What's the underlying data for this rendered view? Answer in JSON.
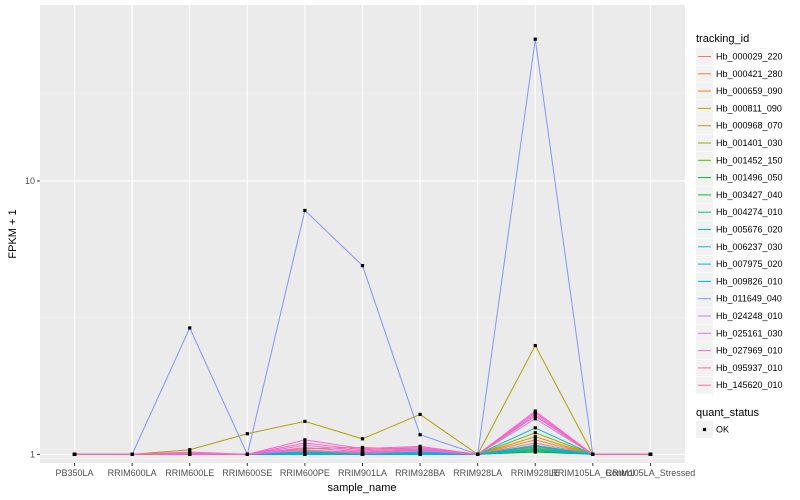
{
  "chart_data": {
    "type": "line",
    "xlabel": "sample_name",
    "ylabel": "FPKM + 1",
    "y_scale": "log",
    "ylim": [
      0.93,
      44
    ],
    "y_ticks": [
      {
        "value": 1,
        "label": "1"
      },
      {
        "value": 10,
        "label": "10"
      }
    ],
    "categories": [
      "PB350LA",
      "RRIM600LA",
      "RRIM600LE",
      "RRIM600SE",
      "RRIM600PE",
      "RRIM901LA",
      "RRIM928BA",
      "RRIM928LA",
      "RRIM928LE",
      "RRIM105LA_Control",
      "RRIM105LA_Stressed"
    ],
    "grid": true,
    "legend_placement": "right",
    "legend_title": "tracking_id",
    "shape_legend_title": "quant_status",
    "shape_legend_items": [
      {
        "label": "OK",
        "marker": "square",
        "color": "#000000"
      }
    ],
    "series": [
      {
        "name": "Hb_000029_220",
        "color": "#F8766D",
        "values": [
          1,
          1,
          1.0,
          1.0,
          1.03,
          1.02,
          1.0,
          1,
          1.1,
          1,
          1
        ]
      },
      {
        "name": "Hb_000421_280",
        "color": "#EC8239",
        "values": [
          1,
          1,
          1.0,
          1.0,
          1.05,
          1.06,
          1.04,
          1,
          1.13,
          1,
          1
        ]
      },
      {
        "name": "Hb_000659_090",
        "color": "#DB8E00",
        "values": [
          1,
          1,
          1.01,
          1.0,
          1.02,
          1.02,
          1.03,
          1,
          1.06,
          1,
          1
        ]
      },
      {
        "name": "Hb_000811_090",
        "color": "#C79800",
        "values": [
          1,
          1,
          1.0,
          1.0,
          1.01,
          1.01,
          1.02,
          1,
          1.16,
          1,
          1
        ]
      },
      {
        "name": "Hb_000968_070",
        "color": "#AEA200",
        "values": [
          1,
          1,
          1.04,
          1.19,
          1.32,
          1.14,
          1.4,
          1,
          2.5,
          1,
          1
        ]
      },
      {
        "name": "Hb_001401_030",
        "color": "#8FAA00",
        "values": [
          1,
          1,
          1.0,
          1.0,
          1.02,
          1.01,
          1.05,
          1,
          1.2,
          1,
          1
        ]
      },
      {
        "name": "Hb_001452_150",
        "color": "#64B200",
        "values": [
          1,
          1,
          1.0,
          1.0,
          1.01,
          1.0,
          1.01,
          1,
          1.04,
          1,
          1
        ]
      },
      {
        "name": "Hb_001496_050",
        "color": "#00B81B",
        "values": [
          1,
          1,
          1.0,
          1.0,
          1.0,
          1.0,
          1.0,
          1,
          1.02,
          1,
          1
        ]
      },
      {
        "name": "Hb_003427_040",
        "color": "#00BD5C",
        "values": [
          1,
          1,
          1.0,
          1.0,
          1.01,
          1.0,
          1.01,
          1,
          1.03,
          1,
          1
        ]
      },
      {
        "name": "Hb_004274_010",
        "color": "#00C08E",
        "values": [
          1,
          1,
          1.0,
          1.0,
          1.0,
          1.0,
          1.0,
          1,
          1.05,
          1,
          1
        ]
      },
      {
        "name": "Hb_005676_020",
        "color": "#00C1B7",
        "values": [
          1,
          1,
          1.0,
          1.0,
          1.0,
          1.0,
          1.0,
          1,
          1.08,
          1,
          1
        ]
      },
      {
        "name": "Hb_006237_030",
        "color": "#00BDD4",
        "values": [
          1,
          1,
          1.0,
          1.0,
          1.02,
          1.0,
          1.02,
          1,
          1.25,
          1,
          1
        ]
      },
      {
        "name": "Hb_007975_020",
        "color": "#00B5EE",
        "values": [
          1,
          1,
          1.0,
          1.0,
          1.0,
          1.0,
          1.0,
          1,
          1.04,
          1,
          1
        ]
      },
      {
        "name": "Hb_009826_010",
        "color": "#00A7FF",
        "values": [
          1,
          1,
          1.0,
          1.0,
          1.01,
          1.0,
          1.01,
          1,
          1.07,
          1,
          1
        ]
      },
      {
        "name": "Hb_011649_040",
        "color": "#7F96FF",
        "values": [
          1,
          1,
          2.9,
          1.0,
          7.8,
          4.9,
          1.18,
          1,
          33,
          1,
          1
        ]
      },
      {
        "name": "Hb_024248_010",
        "color": "#BC81FF",
        "values": [
          1,
          1,
          1.0,
          1.0,
          1.04,
          1.01,
          1.03,
          1,
          1.35,
          1,
          1
        ]
      },
      {
        "name": "Hb_025161_030",
        "color": "#E26EF7",
        "values": [
          1,
          1,
          1.01,
          1.0,
          1.08,
          1.03,
          1.05,
          1,
          1.4,
          1,
          1
        ]
      },
      {
        "name": "Hb_027969_010",
        "color": "#F863DF",
        "values": [
          1,
          1,
          1.02,
          1.0,
          1.13,
          1.05,
          1.07,
          1,
          1.44,
          1,
          1
        ]
      },
      {
        "name": "Hb_095937_010",
        "color": "#FF62BF",
        "values": [
          1,
          1,
          1.0,
          1.0,
          1.06,
          1.02,
          1.04,
          1,
          1.42,
          1,
          1
        ]
      },
      {
        "name": "Hb_145620_010",
        "color": "#FF6A98",
        "values": [
          1,
          1,
          1.0,
          1.0,
          1.1,
          1.04,
          1.06,
          1,
          1.38,
          1,
          1
        ]
      }
    ]
  }
}
